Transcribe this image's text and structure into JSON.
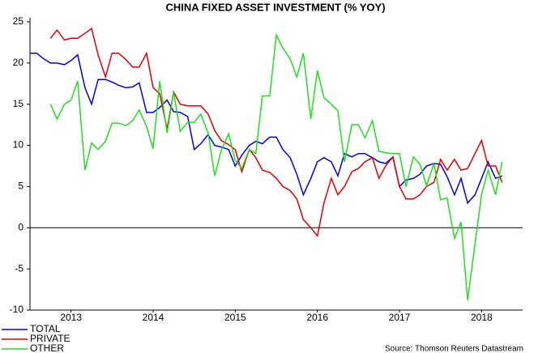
{
  "chart_data": {
    "type": "line",
    "title": "CHINA FIXED ASSET INVESTMENT (% YOY)",
    "source": "Source: Thomson Reuters Datastream",
    "x": [
      2013,
      2013.08,
      2013.17,
      2013.25,
      2013.33,
      2013.42,
      2013.5,
      2013.58,
      2013.67,
      2013.75,
      2013.83,
      2013.92,
      2014,
      2014.08,
      2014.17,
      2014.25,
      2014.33,
      2014.42,
      2014.5,
      2014.58,
      2014.67,
      2014.75,
      2014.83,
      2014.92,
      2015,
      2015.08,
      2015.17,
      2015.25,
      2015.33,
      2015.42,
      2015.5,
      2015.58,
      2015.67,
      2015.75,
      2015.83,
      2015.92,
      2016,
      2016.08,
      2016.17,
      2016.25,
      2016.33,
      2016.42,
      2016.5,
      2016.58,
      2016.67,
      2016.75,
      2016.83,
      2016.92,
      2017,
      2017.08,
      2017.17,
      2017.25,
      2017.33,
      2017.42,
      2017.5,
      2017.58,
      2017.67,
      2017.75,
      2017.83,
      2017.92,
      2018,
      2018.08,
      2018.17,
      2018.25,
      2018.33,
      2018.42,
      2018.5,
      2018.58,
      2018.67,
      2018.75
    ],
    "series": [
      {
        "name": "TOTAL",
        "color": "#0000dd",
        "values": [
          21.2,
          21.2,
          20.5,
          20,
          20,
          19.8,
          20.3,
          21,
          17,
          15,
          18,
          18,
          17.7,
          17.3,
          17,
          17.1,
          17.6,
          14,
          14,
          14.6,
          15.5,
          14.1,
          14,
          13.5,
          9.5,
          10.2,
          11.3,
          10,
          9.8,
          9.5,
          7.5,
          8.8,
          10,
          10.5,
          10.2,
          11,
          11,
          9.5,
          8.5,
          6.5,
          4,
          6,
          8,
          8.5,
          8,
          6.3,
          9,
          8.6,
          9,
          9,
          8.5,
          8,
          7.8,
          8.6,
          5,
          5.8,
          6,
          6.5,
          7.5,
          7.8,
          7.7,
          6.2,
          4,
          6,
          3,
          4,
          6,
          8,
          6,
          6.3
        ]
      },
      {
        "name": "PRIVATE",
        "color": "#dd0000",
        "values": [
          null,
          null,
          null,
          23,
          24,
          22.8,
          23,
          23,
          23.6,
          24.2,
          21,
          18.3,
          21.2,
          21.2,
          20.4,
          19.5,
          19.5,
          21.2,
          17,
          16.3,
          12,
          16.5,
          15,
          14.8,
          14.8,
          14.8,
          13.8,
          11.8,
          10.6,
          10.1,
          9.5,
          6.8,
          9.5,
          8.5,
          7,
          6.7,
          6,
          5,
          4.5,
          3.5,
          1,
          0,
          -1,
          3,
          6,
          4,
          5,
          6.8,
          7.2,
          8,
          8.5,
          6,
          7.5,
          8.6,
          5,
          3.5,
          3.5,
          4,
          5,
          5.5,
          8.3,
          7,
          8.3,
          7,
          7.2,
          9,
          10.6,
          7.5,
          7.5,
          5.5
        ]
      },
      {
        "name": "OTHER",
        "color": "#22dd22",
        "values": [
          null,
          null,
          null,
          15,
          13.2,
          15,
          15.5,
          17.8,
          7,
          10.3,
          9.5,
          10.5,
          12.7,
          12.7,
          12.4,
          13,
          14.3,
          12.3,
          9.6,
          17.8,
          11.5,
          16.5,
          11.7,
          12.8,
          12.8,
          13.8,
          11.5,
          6.3,
          9.4,
          11.4,
          8.2,
          7.2,
          9.5,
          9,
          16,
          16,
          23.4,
          21.8,
          20.5,
          18.3,
          21.2,
          13.2,
          19.1,
          15.8,
          15,
          14.2,
          8,
          12.5,
          12.5,
          10.9,
          13,
          9.3,
          9.1,
          9,
          9,
          5,
          8.6,
          7.7,
          5.1,
          7.8,
          3.4,
          3.6,
          -1.3,
          0.7,
          -8.8,
          -2,
          4,
          7,
          4,
          8
        ]
      }
    ],
    "xlim": [
      2013,
      2019
    ],
    "xticks": [
      {
        "value": 2013.5,
        "label": "2013"
      },
      {
        "value": 2014.5,
        "label": "2014"
      },
      {
        "value": 2015.5,
        "label": "2015"
      },
      {
        "value": 2016.5,
        "label": "2016"
      },
      {
        "value": 2017.5,
        "label": "2017"
      },
      {
        "value": 2018.5,
        "label": "2018"
      }
    ],
    "ylim": [
      -10,
      25
    ],
    "yticks": [
      25,
      20,
      15,
      10,
      5,
      0,
      -5,
      -10
    ]
  }
}
